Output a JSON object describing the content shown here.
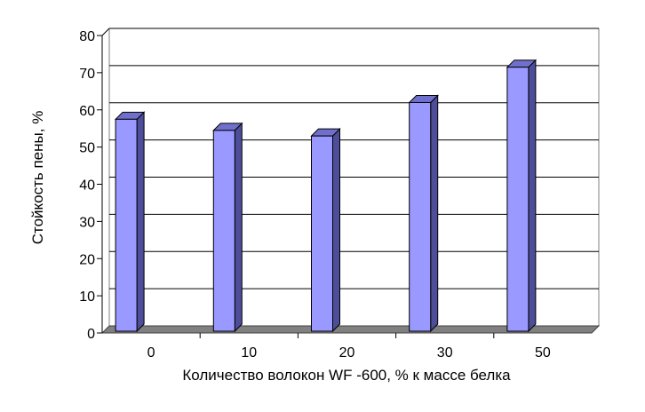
{
  "chart_data": {
    "type": "bar",
    "categories": [
      "0",
      "10",
      "20",
      "30",
      "50"
    ],
    "values": [
      57,
      54,
      52.5,
      61.5,
      71
    ],
    "title": "",
    "xlabel": "Количество волокон WF -600, % к массе белка",
    "ylabel": "Стойкость пены, %",
    "ylim": [
      0,
      80
    ],
    "yticks": [
      "0",
      "10",
      "20",
      "30",
      "40",
      "50",
      "60",
      "70",
      "80"
    ],
    "grid": true,
    "legend": "none",
    "colors": {
      "bar_front": "#9999ff",
      "bar_side": "#4d4d99",
      "bar_top": "#7070cc",
      "floor": "#808080",
      "grid": "#000000"
    }
  }
}
